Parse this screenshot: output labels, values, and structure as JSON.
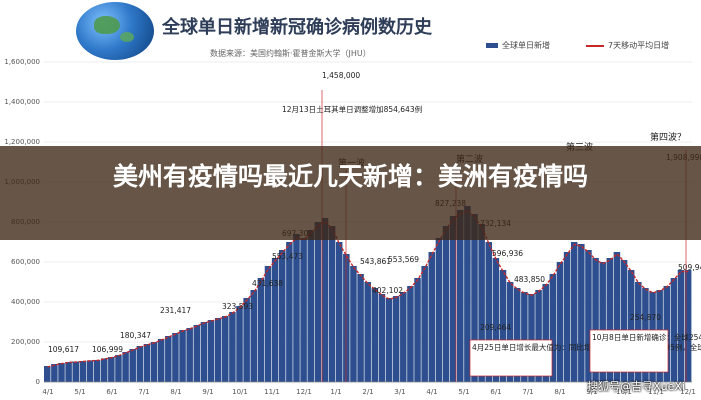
{
  "banner": {
    "title": "美州有疫情吗最近几天新增：美洲有疫情吗"
  },
  "watermark": "搜狐号@吉寻XueXi",
  "chart_data": {
    "type": "bar",
    "title": "全球单日新增新冠确诊病例数历史",
    "subtitle": "数据来源：美国约翰斯·霍普金斯大学（JHU）",
    "legend": [
      "全球单日新增",
      "7天移动平均日增"
    ],
    "yticks": [
      "0",
      "200,000",
      "400,000",
      "600,000",
      "800,000",
      "1,000,000",
      "1,200,000",
      "1,400,000",
      "1,600,000"
    ],
    "ylim": [
      0,
      1600000
    ],
    "xticks": [
      "4/1",
      "5/1",
      "6/1",
      "7/1",
      "8/1",
      "9/1",
      "10/1",
      "11/1",
      "12/1",
      "1/1",
      "2/1",
      "3/1",
      "4/1",
      "5/1",
      "6/1",
      "7/1",
      "8/1",
      "9/1",
      "10/1",
      "11/1",
      "12/1"
    ],
    "series": [
      {
        "name": "全球单日新增",
        "values": [
          80000,
          90000,
          95000,
          100000,
          102000,
          105000,
          108000,
          110000,
          118000,
          125000,
          135000,
          150000,
          165000,
          180000,
          190000,
          200000,
          215000,
          230000,
          245000,
          260000,
          270000,
          285000,
          300000,
          310000,
          320000,
          330000,
          350000,
          380000,
          420000,
          460000,
          520000,
          580000,
          620000,
          660000,
          700000,
          740000,
          720000,
          760000,
          800000,
          820000,
          780000,
          700000,
          640000,
          580000,
          540000,
          500000,
          470000,
          440000,
          420000,
          430000,
          450000,
          480000,
          520000,
          580000,
          650000,
          720000,
          780000,
          830000,
          860000,
          880000,
          840000,
          790000,
          700000,
          620000,
          560000,
          500000,
          470000,
          450000,
          440000,
          460000,
          490000,
          540000,
          600000,
          650000,
          700000,
          690000,
          660000,
          620000,
          600000,
          620000,
          650000,
          610000,
          560000,
          500000,
          470000,
          450000,
          460000,
          480000,
          520000,
          560000,
          560000
        ]
      },
      {
        "name": "7天移动平均日增",
        "values": [
          75000,
          85000,
          92000,
          98000,
          100000,
          103000,
          106000,
          108000,
          115000,
          122000,
          132000,
          146000,
          160000,
          175000,
          186000,
          196000,
          210000,
          225000,
          240000,
          255000,
          266000,
          280000,
          295000,
          305000,
          315000,
          326000,
          345000,
          372000,
          410000,
          450000,
          505000,
          565000,
          608000,
          648000,
          688000,
          720000,
          712000,
          745000,
          780000,
          800000,
          765000,
          690000,
          630000,
          572000,
          532000,
          492000,
          462000,
          434000,
          414000,
          424000,
          444000,
          472000,
          512000,
          570000,
          640000,
          705000,
          765000,
          815000,
          842000,
          858000,
          822000,
          775000,
          690000,
          612000,
          552000,
          494000,
          464000,
          444000,
          434000,
          454000,
          484000,
          532000,
          590000,
          640000,
          688000,
          678000,
          648000,
          610000,
          592000,
          610000,
          640000,
          600000,
          552000,
          494000,
          464000,
          446000,
          456000,
          476000,
          514000,
          552000,
          552000
        ]
      }
    ],
    "data_labels": [
      "109,617",
      "106,999",
      "180,347",
      "231,417",
      "323,593",
      "431,638",
      "553,473",
      "697,301",
      "1,458,000",
      "543,861",
      "402,102",
      "553,569",
      "827,238",
      "732,134",
      "596,936",
      "483,850",
      "209,464",
      "254,870",
      "1,908,998",
      "509,941"
    ],
    "annotations": {
      "wave_labels": [
        "第一波",
        "第二波",
        "第三波",
        "第四波？"
      ],
      "peak_note": "12月13日土耳其单日调整增加854,643例",
      "note_april": "4月25日单日增长最大值为：同比增加：新增确诊：312,695例，全球为209,464例",
      "note_oct": "10月8日单日新增确诊：全球254,870例，日增177,899例"
    }
  }
}
